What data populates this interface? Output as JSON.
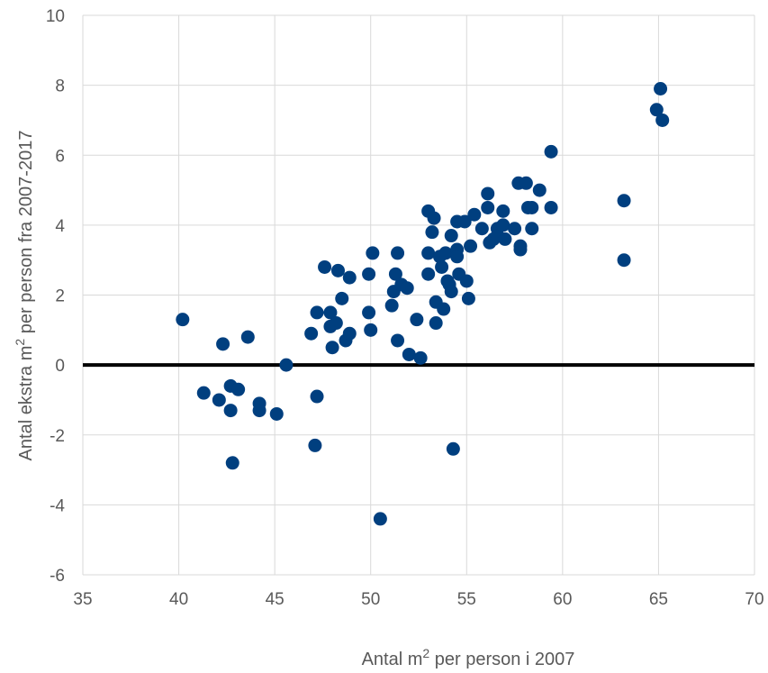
{
  "chart_data": {
    "type": "scatter",
    "title": "",
    "xlabel_pre": "Antal  m",
    "xlabel_sup": "2",
    "xlabel_post": " per person i 2007",
    "ylabel_pre": "Antal ekstra m",
    "ylabel_sup": "2",
    "ylabel_post": " per person fra 2007-2017",
    "xlim": [
      35,
      70
    ],
    "ylim": [
      -6,
      10
    ],
    "x_ticks": [
      35,
      40,
      45,
      50,
      55,
      60,
      65,
      70
    ],
    "y_ticks": [
      -6,
      -4,
      -2,
      0,
      2,
      4,
      6,
      8,
      10
    ],
    "grid": true,
    "reference_line_y": 0,
    "marker_color": "#003f7f",
    "gridline_color": "#d9d9d9",
    "reference_line_color": "#000000",
    "points": [
      {
        "x": 40.2,
        "y": 1.3
      },
      {
        "x": 41.3,
        "y": -0.8
      },
      {
        "x": 42.1,
        "y": -1.0
      },
      {
        "x": 42.3,
        "y": 0.6
      },
      {
        "x": 42.7,
        "y": -0.6
      },
      {
        "x": 42.7,
        "y": -1.3
      },
      {
        "x": 42.8,
        "y": -2.8
      },
      {
        "x": 43.1,
        "y": -0.7
      },
      {
        "x": 43.6,
        "y": 0.8
      },
      {
        "x": 44.2,
        "y": -1.1
      },
      {
        "x": 44.2,
        "y": -1.3
      },
      {
        "x": 45.1,
        "y": -1.4
      },
      {
        "x": 45.6,
        "y": 0.0
      },
      {
        "x": 46.9,
        "y": 0.9
      },
      {
        "x": 47.1,
        "y": -2.3
      },
      {
        "x": 47.2,
        "y": 1.5
      },
      {
        "x": 47.2,
        "y": -0.9
      },
      {
        "x": 47.6,
        "y": 2.8
      },
      {
        "x": 47.9,
        "y": 1.5
      },
      {
        "x": 47.9,
        "y": 1.1
      },
      {
        "x": 48.0,
        "y": 0.5
      },
      {
        "x": 48.2,
        "y": 1.2
      },
      {
        "x": 48.3,
        "y": 2.7
      },
      {
        "x": 48.5,
        "y": 1.9
      },
      {
        "x": 48.7,
        "y": 0.7
      },
      {
        "x": 48.9,
        "y": 2.5
      },
      {
        "x": 48.9,
        "y": 0.9
      },
      {
        "x": 49.9,
        "y": 1.5
      },
      {
        "x": 49.9,
        "y": 2.6
      },
      {
        "x": 50.0,
        "y": 1.0
      },
      {
        "x": 50.1,
        "y": 3.2
      },
      {
        "x": 50.5,
        "y": -4.4
      },
      {
        "x": 51.1,
        "y": 1.7
      },
      {
        "x": 51.2,
        "y": 2.1
      },
      {
        "x": 51.3,
        "y": 2.6
      },
      {
        "x": 51.4,
        "y": 3.2
      },
      {
        "x": 51.4,
        "y": 0.7
      },
      {
        "x": 51.6,
        "y": 2.3
      },
      {
        "x": 51.9,
        "y": 2.2
      },
      {
        "x": 52.0,
        "y": 0.3
      },
      {
        "x": 52.4,
        "y": 1.3
      },
      {
        "x": 52.6,
        "y": 0.2
      },
      {
        "x": 53.0,
        "y": 4.4
      },
      {
        "x": 53.0,
        "y": 3.2
      },
      {
        "x": 53.0,
        "y": 2.6
      },
      {
        "x": 53.2,
        "y": 3.8
      },
      {
        "x": 53.3,
        "y": 4.2
      },
      {
        "x": 53.4,
        "y": 1.8
      },
      {
        "x": 53.4,
        "y": 1.2
      },
      {
        "x": 53.6,
        "y": 3.1
      },
      {
        "x": 53.7,
        "y": 2.8
      },
      {
        "x": 53.8,
        "y": 1.6
      },
      {
        "x": 53.9,
        "y": 3.2
      },
      {
        "x": 54.0,
        "y": 2.4
      },
      {
        "x": 54.1,
        "y": 2.3
      },
      {
        "x": 54.2,
        "y": 3.7
      },
      {
        "x": 54.2,
        "y": 2.1
      },
      {
        "x": 54.3,
        "y": -2.4
      },
      {
        "x": 54.5,
        "y": 4.1
      },
      {
        "x": 54.5,
        "y": 3.3
      },
      {
        "x": 54.5,
        "y": 3.1
      },
      {
        "x": 54.6,
        "y": 2.6
      },
      {
        "x": 54.9,
        "y": 4.1
      },
      {
        "x": 55.0,
        "y": 2.4
      },
      {
        "x": 55.1,
        "y": 1.9
      },
      {
        "x": 55.2,
        "y": 3.4
      },
      {
        "x": 55.4,
        "y": 4.3
      },
      {
        "x": 55.8,
        "y": 3.9
      },
      {
        "x": 56.1,
        "y": 4.9
      },
      {
        "x": 56.1,
        "y": 4.5
      },
      {
        "x": 56.2,
        "y": 3.5
      },
      {
        "x": 56.4,
        "y": 3.6
      },
      {
        "x": 56.6,
        "y": 3.9
      },
      {
        "x": 56.6,
        "y": 3.7
      },
      {
        "x": 56.9,
        "y": 4.0
      },
      {
        "x": 56.9,
        "y": 4.4
      },
      {
        "x": 57.0,
        "y": 3.6
      },
      {
        "x": 57.5,
        "y": 3.9
      },
      {
        "x": 57.7,
        "y": 5.2
      },
      {
        "x": 57.8,
        "y": 3.4
      },
      {
        "x": 57.8,
        "y": 3.3
      },
      {
        "x": 58.1,
        "y": 5.2
      },
      {
        "x": 58.2,
        "y": 4.5
      },
      {
        "x": 58.4,
        "y": 4.5
      },
      {
        "x": 58.4,
        "y": 3.9
      },
      {
        "x": 58.8,
        "y": 5.0
      },
      {
        "x": 59.4,
        "y": 6.1
      },
      {
        "x": 59.4,
        "y": 4.5
      },
      {
        "x": 63.2,
        "y": 4.7
      },
      {
        "x": 63.2,
        "y": 3.0
      },
      {
        "x": 64.9,
        "y": 7.3
      },
      {
        "x": 65.1,
        "y": 7.9
      },
      {
        "x": 65.2,
        "y": 7.0
      }
    ]
  }
}
